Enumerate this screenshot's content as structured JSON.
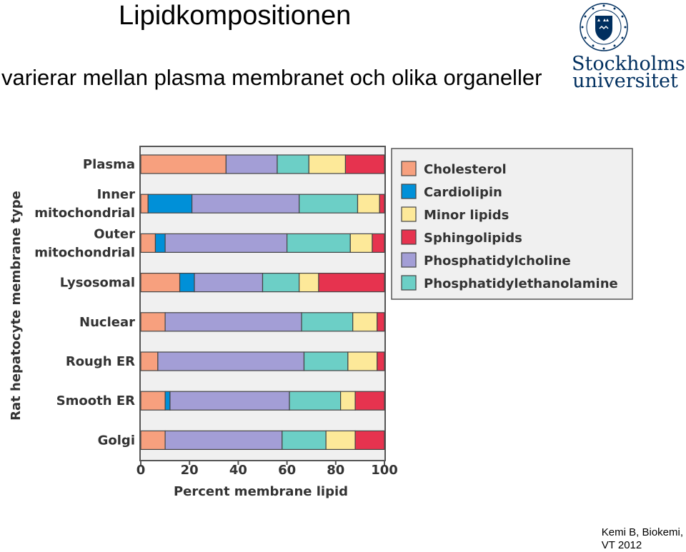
{
  "slide": {
    "title": "Lipidkompositionen",
    "subtitle": "varierar mellan plasma membranet och olika organeller",
    "footer_line1": "Kemi B, Biokemi,",
    "footer_line2": "VT 2012",
    "logo_line1": "Stockholms",
    "logo_line2": "universitet",
    "logo_icon": "stockholm-university-seal-icon"
  },
  "chart_data": {
    "type": "bar",
    "orientation": "horizontal",
    "stacked": true,
    "categories": [
      [
        "Plasma"
      ],
      [
        "Inner",
        "mitochondrial"
      ],
      [
        "Outer",
        "mitochondrial"
      ],
      [
        "Lysosomal"
      ],
      [
        "Nuclear"
      ],
      [
        "Rough ER"
      ],
      [
        "Smooth ER"
      ],
      [
        "Golgi"
      ]
    ],
    "series": [
      {
        "name": "Cholesterol",
        "color": "#f7a07e",
        "values": [
          35,
          3,
          6,
          16,
          10,
          7,
          10,
          10
        ]
      },
      {
        "name": "Cardiolipin",
        "color": "#0090d8",
        "values": [
          0,
          18,
          4,
          6,
          0,
          0,
          2,
          0
        ]
      },
      {
        "name": "Phosphatidylcholine",
        "color": "#a39ed6",
        "values": [
          21,
          44,
          50,
          28,
          56,
          60,
          49,
          48
        ]
      },
      {
        "name": "Phosphatidylethanolamine",
        "color": "#6ccfc6",
        "values": [
          13,
          24,
          26,
          15,
          21,
          18,
          21,
          18
        ]
      },
      {
        "name": "Minor lipids",
        "color": "#fde999",
        "values": [
          15,
          9,
          9,
          8,
          10,
          12,
          6,
          12
        ]
      },
      {
        "name": "Sphingolipids",
        "color": "#e6334f",
        "values": [
          16,
          2,
          5,
          27,
          3,
          3,
          12,
          12
        ]
      }
    ],
    "legend_order": [
      "Cholesterol",
      "Cardiolipin",
      "Minor lipids",
      "Sphingolipids",
      "Phosphatidylcholine",
      "Phosphatidylethanolamine"
    ],
    "xlabel": "Percent membrane lipid",
    "ylabel": "Rat hepatocyte membrane type",
    "xlim": [
      0,
      100
    ],
    "xticks": [
      0,
      20,
      40,
      60,
      80,
      100
    ],
    "grid": false,
    "legend_position": "right",
    "plot_background": "#f0f0f0",
    "legend_background": "#f0f0f0"
  }
}
